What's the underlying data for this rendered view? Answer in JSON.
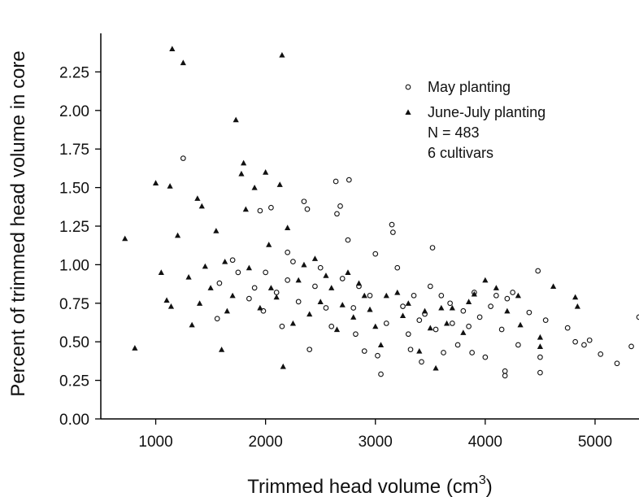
{
  "chart_data": {
    "type": "scatter",
    "title": "",
    "xlabel": "Trimmed head volume (cm",
    "xlabel_sup": "3",
    "xlabel_close": ")",
    "ylabel": "Percent of trimmed head volume in core",
    "xlim": [
      500,
      5400
    ],
    "ylim": [
      0,
      2.5
    ],
    "x_ticks": [
      1000,
      2000,
      3000,
      4000,
      5000
    ],
    "x_tick_labels": [
      "1000",
      "2000",
      "3000",
      "4000",
      "5000"
    ],
    "y_ticks": [
      0,
      0.25,
      0.5,
      0.75,
      1.0,
      1.25,
      1.5,
      1.75,
      2.0,
      2.25
    ],
    "y_tick_labels": [
      "0.00",
      "0.25",
      "0.50",
      "0.75",
      "1.00",
      "1.25",
      "1.50",
      "1.75",
      "2.00",
      "2.25"
    ],
    "grid": false,
    "legend_position": "top-right",
    "annotations": [
      "N = 483",
      "6 cultivars"
    ],
    "series": [
      {
        "name": "May planting",
        "marker": "open-circle",
        "points": [
          [
            1250,
            1.69
          ],
          [
            1580,
            0.88
          ],
          [
            1560,
            0.65
          ],
          [
            1700,
            1.03
          ],
          [
            1750,
            0.95
          ],
          [
            1850,
            0.78
          ],
          [
            1900,
            0.85
          ],
          [
            1950,
            1.35
          ],
          [
            1980,
            0.7
          ],
          [
            2000,
            0.95
          ],
          [
            2050,
            1.37
          ],
          [
            2100,
            0.82
          ],
          [
            2150,
            0.6
          ],
          [
            2200,
            0.9
          ],
          [
            2200,
            1.08
          ],
          [
            2250,
            1.02
          ],
          [
            2300,
            0.76
          ],
          [
            2350,
            1.41
          ],
          [
            2380,
            1.36
          ],
          [
            2400,
            0.45
          ],
          [
            2450,
            0.86
          ],
          [
            2500,
            0.98
          ],
          [
            2550,
            0.72
          ],
          [
            2600,
            0.6
          ],
          [
            2640,
            1.54
          ],
          [
            2650,
            1.33
          ],
          [
            2680,
            1.38
          ],
          [
            2700,
            0.91
          ],
          [
            2750,
            1.16
          ],
          [
            2760,
            1.55
          ],
          [
            2800,
            0.72
          ],
          [
            2820,
            0.55
          ],
          [
            2850,
            0.86
          ],
          [
            2900,
            0.44
          ],
          [
            2950,
            0.8
          ],
          [
            3000,
            1.07
          ],
          [
            3020,
            0.41
          ],
          [
            3050,
            0.29
          ],
          [
            3100,
            0.62
          ],
          [
            3150,
            1.26
          ],
          [
            3160,
            1.21
          ],
          [
            3200,
            0.98
          ],
          [
            3250,
            0.73
          ],
          [
            3300,
            0.55
          ],
          [
            3320,
            0.45
          ],
          [
            3350,
            0.8
          ],
          [
            3400,
            0.64
          ],
          [
            3420,
            0.37
          ],
          [
            3450,
            0.68
          ],
          [
            3500,
            0.86
          ],
          [
            3520,
            1.11
          ],
          [
            3550,
            0.58
          ],
          [
            3600,
            0.8
          ],
          [
            3620,
            0.43
          ],
          [
            3680,
            0.75
          ],
          [
            3700,
            0.62
          ],
          [
            3750,
            0.48
          ],
          [
            3800,
            0.7
          ],
          [
            3850,
            0.6
          ],
          [
            3880,
            0.43
          ],
          [
            3900,
            0.82
          ],
          [
            3950,
            0.66
          ],
          [
            4000,
            0.4
          ],
          [
            4050,
            0.73
          ],
          [
            4100,
            0.8
          ],
          [
            4150,
            0.58
          ],
          [
            4180,
            0.31
          ],
          [
            4180,
            0.28
          ],
          [
            4200,
            0.78
          ],
          [
            4250,
            0.82
          ],
          [
            4300,
            0.48
          ],
          [
            4400,
            0.69
          ],
          [
            4480,
            0.96
          ],
          [
            4500,
            0.3
          ],
          [
            4500,
            0.4
          ],
          [
            4550,
            0.64
          ],
          [
            4750,
            0.59
          ],
          [
            4820,
            0.5
          ],
          [
            4900,
            0.48
          ],
          [
            4950,
            0.51
          ],
          [
            5050,
            0.42
          ],
          [
            5200,
            0.36
          ],
          [
            5330,
            0.47
          ],
          [
            5400,
            0.66
          ]
        ]
      },
      {
        "name": "June-July planting",
        "marker": "filled-triangle",
        "points": [
          [
            720,
            1.17
          ],
          [
            810,
            0.46
          ],
          [
            1000,
            1.53
          ],
          [
            1050,
            0.95
          ],
          [
            1100,
            0.77
          ],
          [
            1130,
            1.51
          ],
          [
            1140,
            0.73
          ],
          [
            1150,
            2.4
          ],
          [
            1200,
            1.19
          ],
          [
            1250,
            2.31
          ],
          [
            1300,
            0.92
          ],
          [
            1330,
            0.61
          ],
          [
            1380,
            1.43
          ],
          [
            1400,
            0.75
          ],
          [
            1420,
            1.38
          ],
          [
            1450,
            0.99
          ],
          [
            1500,
            0.85
          ],
          [
            1550,
            1.22
          ],
          [
            1600,
            0.45
          ],
          [
            1630,
            1.02
          ],
          [
            1650,
            0.7
          ],
          [
            1700,
            0.8
          ],
          [
            1730,
            1.94
          ],
          [
            1780,
            1.59
          ],
          [
            1800,
            1.66
          ],
          [
            1820,
            1.36
          ],
          [
            1850,
            0.98
          ],
          [
            1900,
            1.5
          ],
          [
            1950,
            0.72
          ],
          [
            2000,
            1.6
          ],
          [
            2030,
            1.13
          ],
          [
            2050,
            0.85
          ],
          [
            2100,
            0.79
          ],
          [
            2130,
            1.52
          ],
          [
            2150,
            2.36
          ],
          [
            2160,
            0.34
          ],
          [
            2200,
            1.24
          ],
          [
            2250,
            0.62
          ],
          [
            2300,
            0.9
          ],
          [
            2350,
            1.0
          ],
          [
            2400,
            0.68
          ],
          [
            2450,
            1.04
          ],
          [
            2500,
            0.76
          ],
          [
            2550,
            0.93
          ],
          [
            2600,
            0.85
          ],
          [
            2650,
            0.58
          ],
          [
            2700,
            0.74
          ],
          [
            2750,
            0.95
          ],
          [
            2800,
            0.66
          ],
          [
            2850,
            0.88
          ],
          [
            2900,
            0.8
          ],
          [
            2950,
            0.71
          ],
          [
            3000,
            0.6
          ],
          [
            3050,
            0.48
          ],
          [
            3100,
            0.8
          ],
          [
            3200,
            0.82
          ],
          [
            3250,
            0.67
          ],
          [
            3300,
            0.75
          ],
          [
            3400,
            0.44
          ],
          [
            3450,
            0.7
          ],
          [
            3500,
            0.59
          ],
          [
            3550,
            0.33
          ],
          [
            3600,
            0.72
          ],
          [
            3650,
            0.62
          ],
          [
            3700,
            0.72
          ],
          [
            3800,
            0.56
          ],
          [
            3850,
            0.76
          ],
          [
            3900,
            0.81
          ],
          [
            4000,
            0.9
          ],
          [
            4100,
            0.85
          ],
          [
            4200,
            0.7
          ],
          [
            4300,
            0.8
          ],
          [
            4320,
            0.61
          ],
          [
            4500,
            0.53
          ],
          [
            4500,
            0.47
          ],
          [
            4620,
            0.86
          ],
          [
            4820,
            0.79
          ],
          [
            4840,
            0.73
          ]
        ]
      }
    ]
  }
}
